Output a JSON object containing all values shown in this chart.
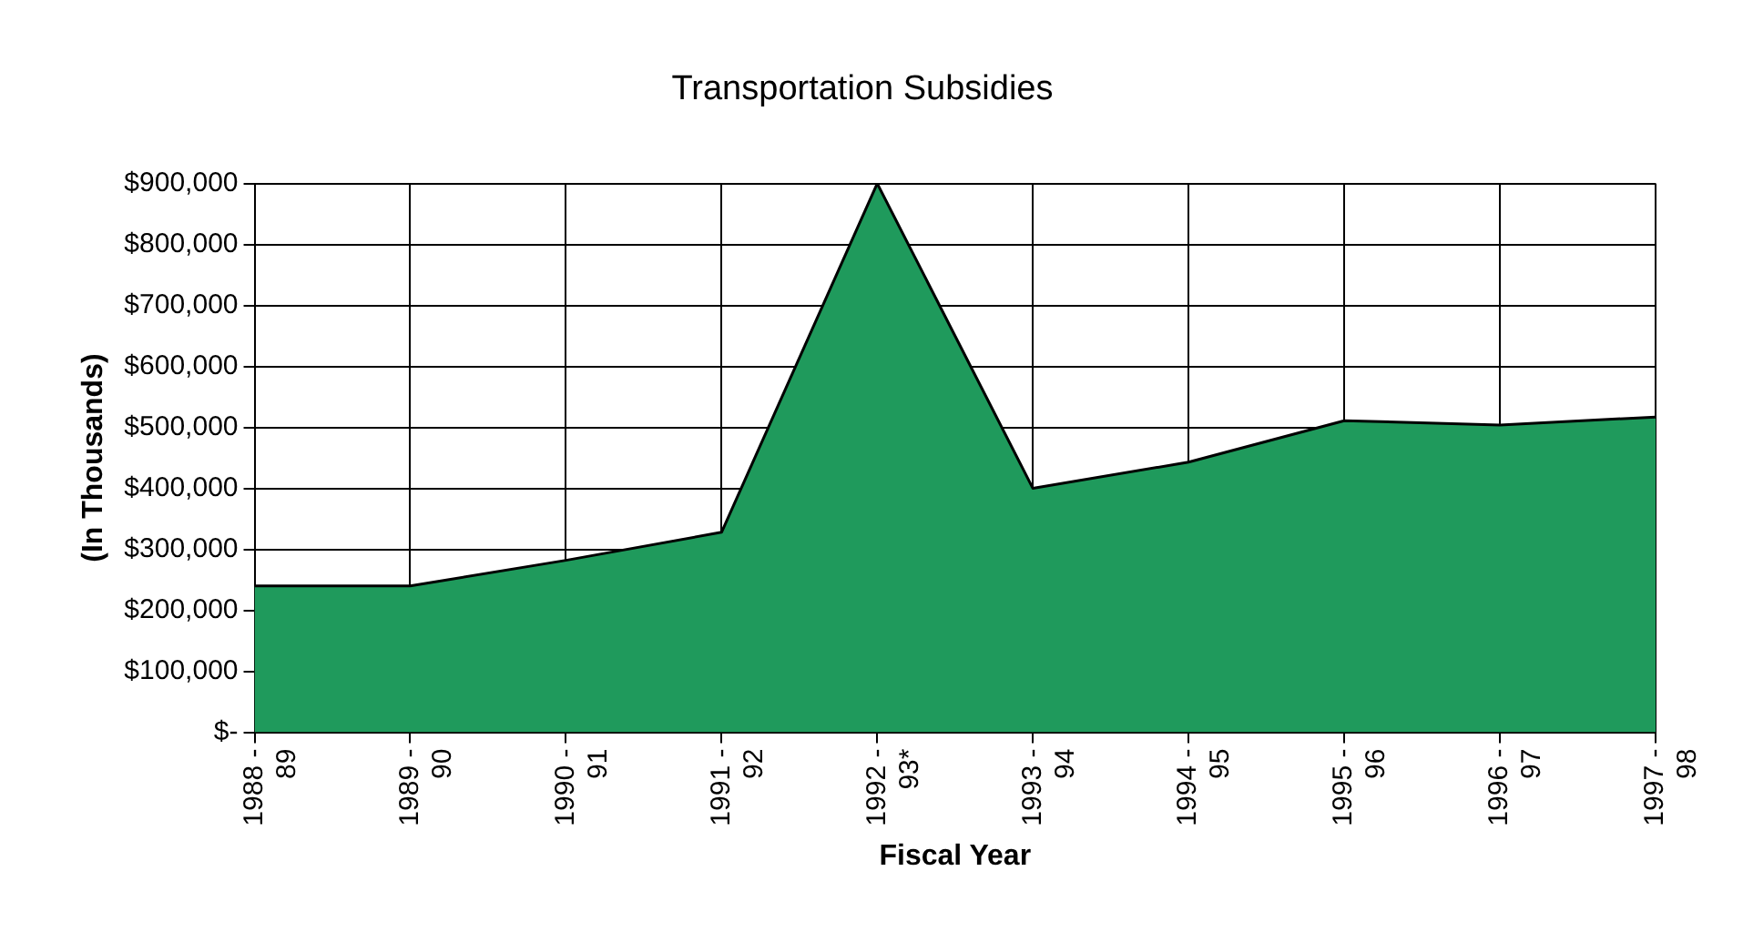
{
  "chart_data": {
    "type": "area",
    "title": "Transportation Subsidies",
    "xlabel": "Fiscal Year",
    "ylabel": "(In Thousands)",
    "categories": [
      "1988 - 89",
      "1989 - 90",
      "1990 - 91",
      "1991 - 92",
      "1992 - 93*",
      "1993 - 94",
      "1994 - 95",
      "1995 - 96",
      "1996 - 97",
      "1997 - 98"
    ],
    "series": [
      {
        "color": "#1f9a5c",
        "values": [
          240000,
          240000,
          282000,
          328000,
          900000,
          400000,
          443000,
          511000,
          504000,
          517000
        ]
      }
    ],
    "ylim": [
      0,
      900000
    ],
    "yticks": [
      {
        "value": 0,
        "label": "$-"
      },
      {
        "value": 100000,
        "label": "$100,000"
      },
      {
        "value": 200000,
        "label": "$200,000"
      },
      {
        "value": 300000,
        "label": "$300,000"
      },
      {
        "value": 400000,
        "label": "$400,000"
      },
      {
        "value": 500000,
        "label": "$500,000"
      },
      {
        "value": 600000,
        "label": "$600,000"
      },
      {
        "value": 700000,
        "label": "$700,000"
      },
      {
        "value": 800000,
        "label": "$800,000"
      },
      {
        "value": 900000,
        "label": "$900,000"
      }
    ],
    "grid": true,
    "legend": false
  }
}
